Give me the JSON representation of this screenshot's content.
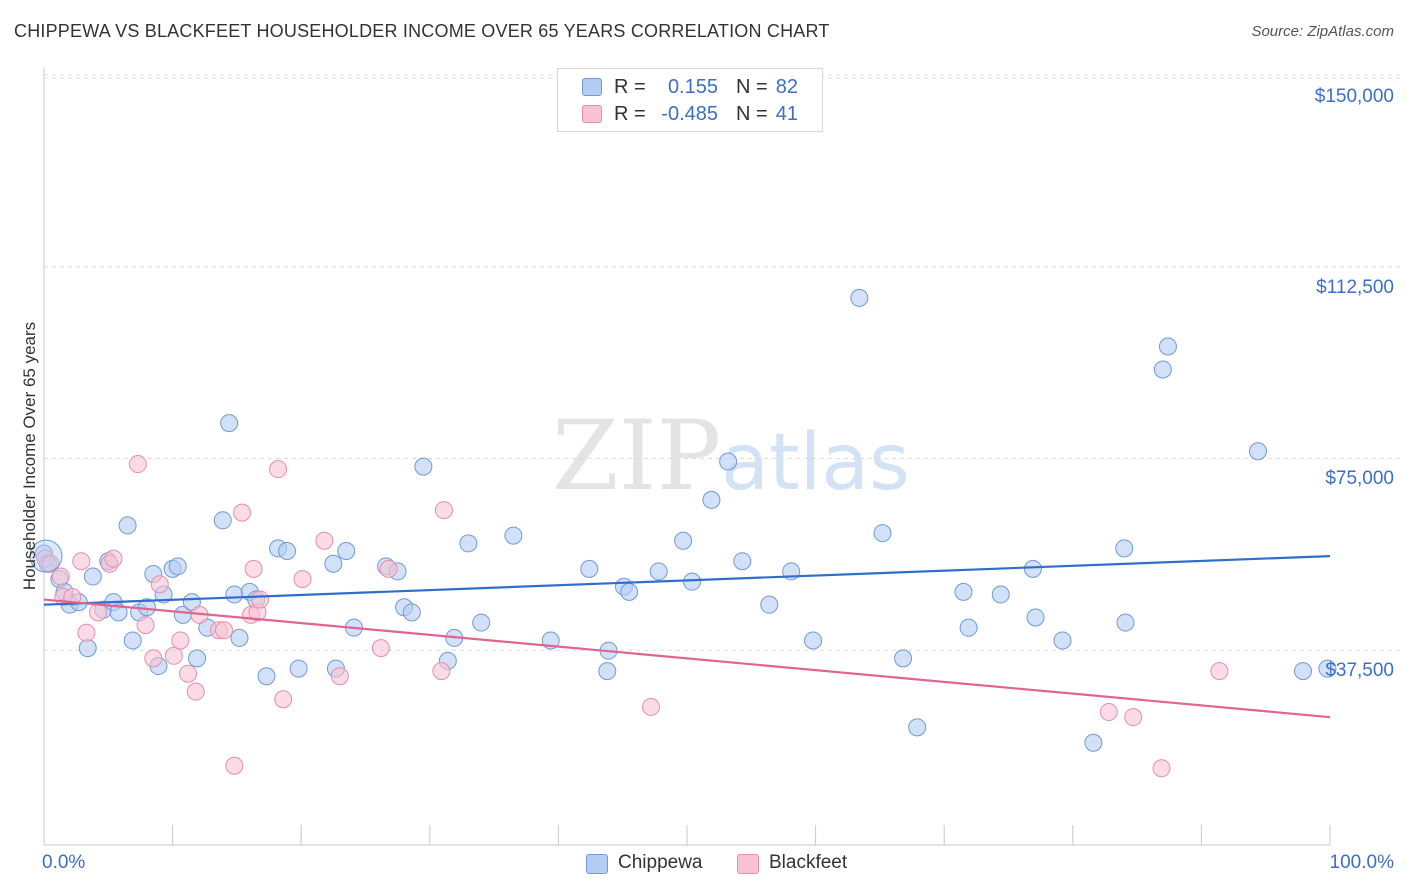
{
  "title": "CHIPPEWA VS BLACKFEET HOUSEHOLDER INCOME OVER 65 YEARS CORRELATION CHART",
  "source": "Source: ZipAtlas.com",
  "watermark": {
    "zip": "ZIP",
    "atlas": "atlas"
  },
  "legend": {
    "rows": [
      {
        "r_label": "R =",
        "r_value": "0.155",
        "n_label": "N =",
        "n_value": "82"
      },
      {
        "r_label": "R =",
        "r_value": "-0.485",
        "n_label": "N =",
        "n_value": "41"
      }
    ]
  },
  "colors": {
    "chippewa_fill": "#b4cdf2",
    "chippewa_stroke": "#6f9ad8",
    "chippewa_line": "#2f6fcc",
    "blackfeet_fill": "#f8c3d4",
    "blackfeet_stroke": "#e58fab",
    "blackfeet_line": "#e0648f",
    "grid": "#dcdcdc",
    "accent_text": "#3d6fc6"
  },
  "chart_data": {
    "type": "scatter",
    "title": "CHIPPEWA VS BLACKFEET HOUSEHOLDER INCOME OVER 65 YEARS CORRELATION CHART",
    "xlabel": "",
    "ylabel": "Householder Income Over 65 years",
    "xlim": [
      0,
      100
    ],
    "ylim": [
      0,
      155000
    ],
    "x_tick_labels": [
      "0.0%",
      "100.0%"
    ],
    "y_ticks": [
      37500,
      75000,
      112500,
      150000
    ],
    "y_tick_labels": [
      "$37,500",
      "$75,000",
      "$112,500",
      "$150,000"
    ],
    "grid": true,
    "legend_position": "bottom",
    "series": [
      {
        "name": "Chippewa",
        "r": 0.155,
        "n": 82,
        "trend": [
          [
            0,
            47000
          ],
          [
            100,
            56500
          ]
        ],
        "points": [
          [
            0.0,
            57000
          ],
          [
            0.3,
            55000
          ],
          [
            1.2,
            52000
          ],
          [
            1.6,
            49500
          ],
          [
            2.0,
            47000
          ],
          [
            2.7,
            47500
          ],
          [
            3.4,
            38500
          ],
          [
            3.8,
            52500
          ],
          [
            4.6,
            46000
          ],
          [
            5.0,
            55500
          ],
          [
            5.4,
            47500
          ],
          [
            5.8,
            45500
          ],
          [
            6.5,
            62500
          ],
          [
            6.9,
            40000
          ],
          [
            7.4,
            45500
          ],
          [
            8.0,
            46500
          ],
          [
            8.5,
            53000
          ],
          [
            8.9,
            35000
          ],
          [
            9.3,
            49000
          ],
          [
            10.0,
            54000
          ],
          [
            10.4,
            54500
          ],
          [
            10.8,
            45000
          ],
          [
            11.5,
            47500
          ],
          [
            11.9,
            36500
          ],
          [
            12.7,
            42500
          ],
          [
            13.9,
            63500
          ],
          [
            14.4,
            82500
          ],
          [
            14.8,
            49000
          ],
          [
            15.2,
            40500
          ],
          [
            16.0,
            49500
          ],
          [
            16.5,
            48000
          ],
          [
            17.3,
            33000
          ],
          [
            18.2,
            58000
          ],
          [
            18.9,
            57500
          ],
          [
            19.8,
            34500
          ],
          [
            22.5,
            55000
          ],
          [
            22.7,
            34500
          ],
          [
            23.5,
            57500
          ],
          [
            24.1,
            42500
          ],
          [
            26.6,
            54500
          ],
          [
            27.5,
            53500
          ],
          [
            28.0,
            46500
          ],
          [
            28.6,
            45500
          ],
          [
            29.5,
            74000
          ],
          [
            31.4,
            36000
          ],
          [
            31.9,
            40500
          ],
          [
            33.0,
            59000
          ],
          [
            34.0,
            43500
          ],
          [
            36.5,
            60500
          ],
          [
            39.4,
            40000
          ],
          [
            42.4,
            54000
          ],
          [
            43.8,
            34000
          ],
          [
            43.9,
            38000
          ],
          [
            45.1,
            50500
          ],
          [
            45.5,
            49500
          ],
          [
            47.8,
            53500
          ],
          [
            49.7,
            59500
          ],
          [
            50.4,
            51500
          ],
          [
            51.9,
            67500
          ],
          [
            53.2,
            75000
          ],
          [
            54.3,
            55500
          ],
          [
            56.4,
            47000
          ],
          [
            58.1,
            53500
          ],
          [
            59.8,
            40000
          ],
          [
            63.4,
            107000
          ],
          [
            65.2,
            61000
          ],
          [
            66.8,
            36500
          ],
          [
            67.9,
            23000
          ],
          [
            71.5,
            49500
          ],
          [
            71.9,
            42500
          ],
          [
            74.4,
            49000
          ],
          [
            76.9,
            54000
          ],
          [
            77.1,
            44500
          ],
          [
            79.2,
            40000
          ],
          [
            81.6,
            20000
          ],
          [
            84.0,
            58000
          ],
          [
            84.1,
            43500
          ],
          [
            87.0,
            93000
          ],
          [
            87.4,
            97500
          ],
          [
            94.4,
            77000
          ],
          [
            97.9,
            34000
          ],
          [
            99.8,
            34500
          ]
        ]
      },
      {
        "name": "Blackfeet",
        "r": -0.485,
        "n": 41,
        "trend": [
          [
            0,
            48000
          ],
          [
            100,
            25000
          ]
        ],
        "points": [
          [
            0.1,
            56000
          ],
          [
            0.5,
            55000
          ],
          [
            1.3,
            52500
          ],
          [
            1.5,
            48500
          ],
          [
            2.2,
            48500
          ],
          [
            2.9,
            55500
          ],
          [
            3.3,
            41500
          ],
          [
            4.2,
            45500
          ],
          [
            5.1,
            55000
          ],
          [
            5.4,
            56000
          ],
          [
            7.3,
            74500
          ],
          [
            7.9,
            43000
          ],
          [
            8.5,
            36500
          ],
          [
            9.0,
            51000
          ],
          [
            10.1,
            37000
          ],
          [
            10.6,
            40000
          ],
          [
            11.2,
            33500
          ],
          [
            11.8,
            30000
          ],
          [
            12.1,
            45000
          ],
          [
            13.6,
            42000
          ],
          [
            14.0,
            42000
          ],
          [
            14.8,
            15500
          ],
          [
            15.4,
            65000
          ],
          [
            16.1,
            45000
          ],
          [
            16.3,
            54000
          ],
          [
            16.6,
            45500
          ],
          [
            16.8,
            48000
          ],
          [
            18.2,
            73500
          ],
          [
            18.6,
            28500
          ],
          [
            20.1,
            52000
          ],
          [
            21.8,
            59500
          ],
          [
            23.0,
            33000
          ],
          [
            26.2,
            38500
          ],
          [
            26.8,
            54000
          ],
          [
            30.9,
            34000
          ],
          [
            31.1,
            65500
          ],
          [
            47.2,
            27000
          ],
          [
            82.8,
            26000
          ],
          [
            84.7,
            25000
          ],
          [
            86.9,
            15000
          ],
          [
            91.4,
            34000
          ]
        ]
      }
    ]
  },
  "bottom_legend": [
    {
      "name": "Chippewa"
    },
    {
      "name": "Blackfeet"
    }
  ]
}
